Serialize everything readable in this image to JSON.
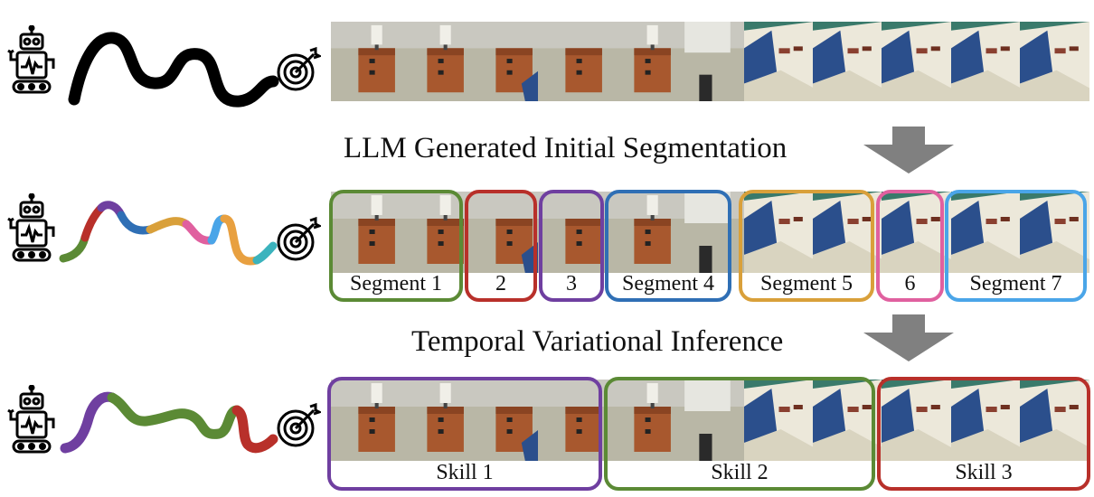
{
  "captions": {
    "step1": "LLM Generated Initial Segmentation",
    "step2": "Temporal Variational Inference"
  },
  "icons": {
    "robot": "robot-icon",
    "target": "target-icon",
    "arrow": "down-arrow-icon"
  },
  "colors": {
    "trajectory": "#000000",
    "arrow": "#808080",
    "green": "#5b8a35",
    "red": "#b8302a",
    "purple": "#6f3fa0",
    "blue": "#2f6fb5",
    "orange": "#d9a03a",
    "pink": "#e0609f",
    "lightblue": "#4aa5e8",
    "teal": "#3bb3bd"
  },
  "segments": [
    {
      "label": "Segment  1",
      "color": "#5b8a35"
    },
    {
      "label": "2",
      "color": "#b8302a"
    },
    {
      "label": "3",
      "color": "#6f3fa0"
    },
    {
      "label": "Segment  4",
      "color": "#2f6fb5"
    },
    {
      "label": "Segment  5",
      "color": "#d9a03a"
    },
    {
      "label": "6",
      "color": "#e0609f"
    },
    {
      "label": "Segment  7",
      "color": "#4aa5e8"
    }
  ],
  "skills": [
    {
      "label": "Skill 1",
      "color": "#6f3fa0"
    },
    {
      "label": "Skill 2",
      "color": "#5b8a35"
    },
    {
      "label": "Skill 3",
      "color": "#b8302a"
    }
  ],
  "frames": [
    {
      "scene": "hall-dresser-lamp"
    },
    {
      "scene": "dresser-lamp-near"
    },
    {
      "scene": "dresser-side-blue"
    },
    {
      "scene": "dresser-top"
    },
    {
      "scene": "dresser-top-lamp"
    },
    {
      "scene": "hall-floor-mat"
    },
    {
      "scene": "bed-corner"
    },
    {
      "scene": "bed-pillow"
    },
    {
      "scene": "bed-wide"
    },
    {
      "scene": "bed-blanket"
    },
    {
      "scene": "bed-close"
    }
  ]
}
